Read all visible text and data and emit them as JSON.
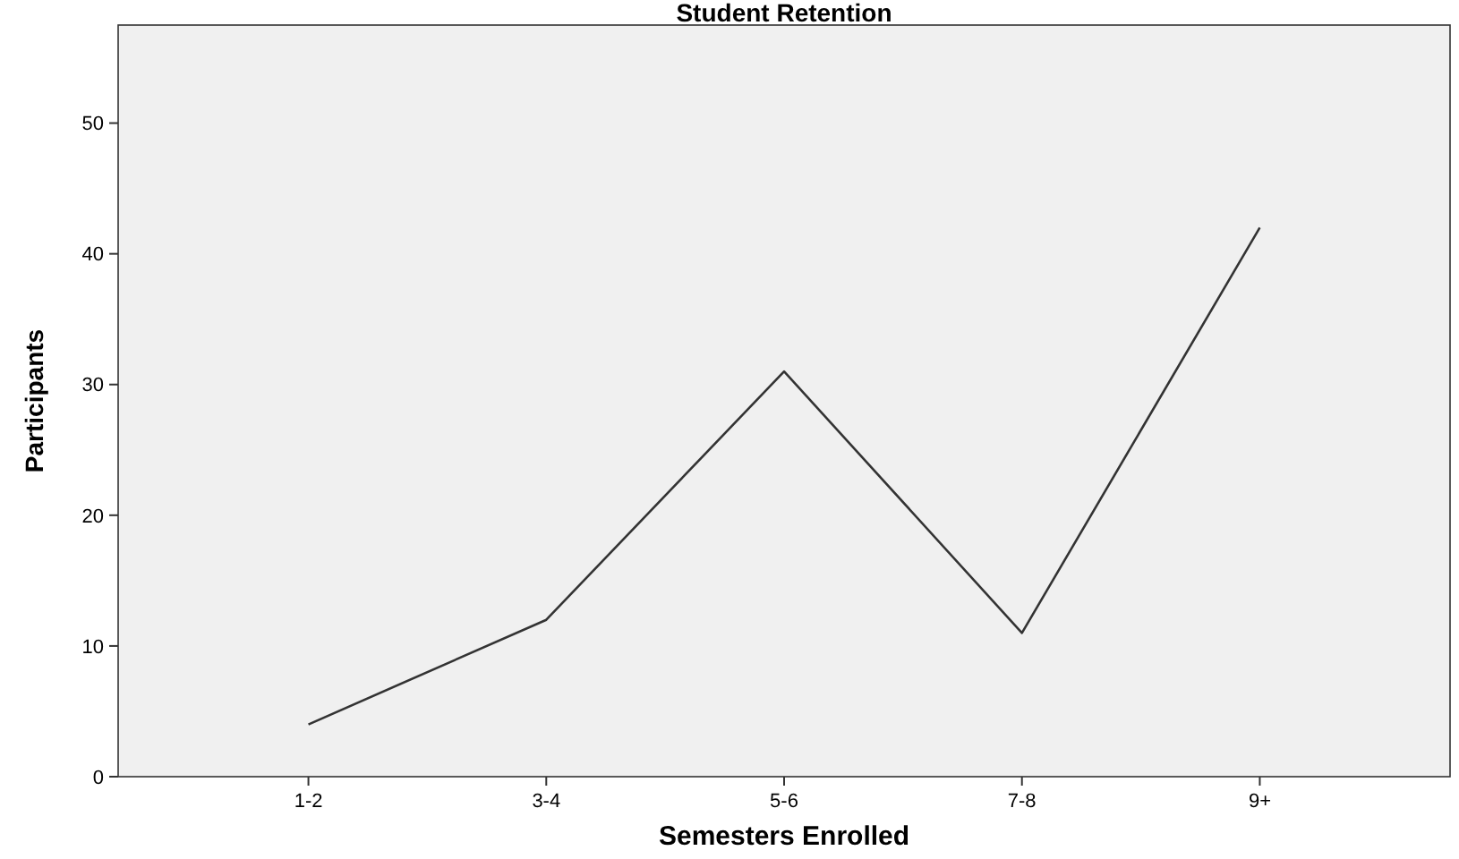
{
  "chart_data": {
    "type": "line",
    "title": "Student Retention",
    "xlabel": "Semesters Enrolled",
    "ylabel": "Participants",
    "categories": [
      "1-2",
      "3-4",
      "5-6",
      "7-8",
      "9+"
    ],
    "series": [
      {
        "color": "#333333",
        "values": [
          4,
          12,
          31,
          11,
          42
        ]
      }
    ],
    "ylim": [
      0,
      57.5
    ],
    "yticks": [
      0,
      10,
      20,
      30,
      40,
      50
    ],
    "grid": false,
    "marker": "none",
    "line_style": "solid"
  }
}
